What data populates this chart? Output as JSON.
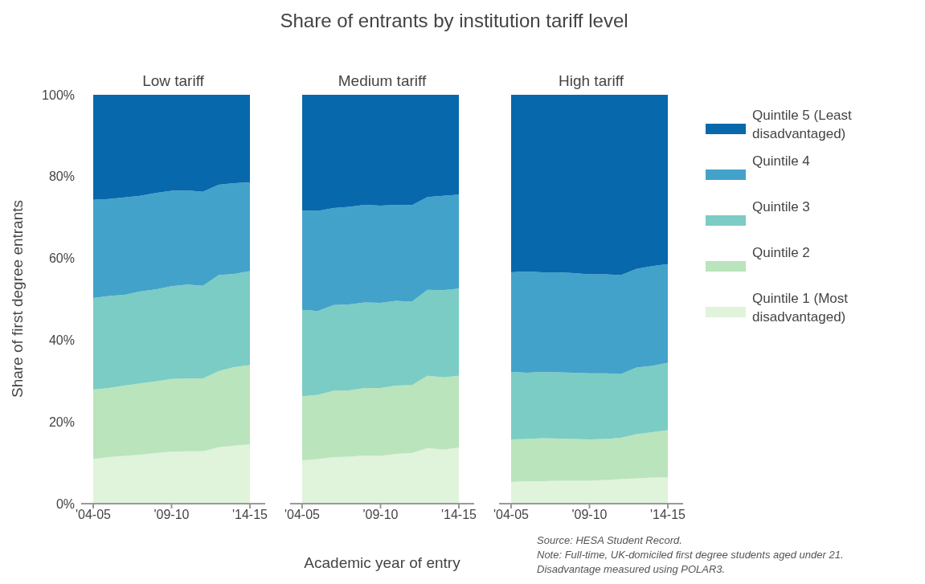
{
  "chart_data": [
    {
      "type": "area",
      "stacked": true,
      "subtitle": "Low tariff",
      "ylabel": "Share of first degree entrants",
      "categories": [
        "'04-05",
        null,
        null,
        null,
        null,
        "'09-10",
        null,
        null,
        null,
        null,
        "'14-15"
      ],
      "ylim": [
        0,
        100
      ],
      "yticks": [
        {
          "value": 0,
          "label": "0%"
        },
        {
          "value": 20,
          "label": "20%"
        },
        {
          "value": 40,
          "label": "40%"
        },
        {
          "value": 60,
          "label": "60%"
        },
        {
          "value": 80,
          "label": "80%"
        },
        {
          "value": 100,
          "label": "100%"
        }
      ],
      "series": [
        {
          "color": "#e0f3db",
          "values": [
            10.9,
            11.4,
            11.7,
            12.0,
            12.4,
            12.7,
            12.8,
            12.8,
            13.8,
            14.2,
            14.5
          ]
        },
        {
          "color": "#bae4bc",
          "values": [
            17.0,
            16.9,
            17.2,
            17.4,
            17.5,
            17.8,
            17.8,
            17.8,
            18.6,
            19.2,
            19.4
          ]
        },
        {
          "color": "#7bccc4",
          "values": [
            22.4,
            22.5,
            22.2,
            22.5,
            22.5,
            22.7,
            23.0,
            22.7,
            23.5,
            22.8,
            23.0
          ]
        },
        {
          "color": "#43a2ca",
          "values": [
            24.0,
            23.7,
            23.8,
            23.4,
            23.6,
            23.3,
            23.0,
            23.0,
            22.1,
            22.2,
            21.7
          ]
        },
        {
          "color": "#0868ac",
          "values": [
            25.7,
            25.5,
            25.1,
            24.7,
            24.0,
            23.5,
            23.4,
            23.7,
            22.0,
            21.6,
            21.4
          ]
        }
      ]
    },
    {
      "type": "area",
      "stacked": true,
      "title": "Share of entrants by institution tariff level",
      "subtitle": "Medium tariff",
      "xlabel": "Academic year of entry",
      "tick_labels": "x",
      "categories": [
        "'04-05",
        null,
        null,
        null,
        null,
        "'09-10",
        null,
        null,
        null,
        null,
        "'14-15"
      ],
      "ylim": [
        0,
        100
      ],
      "series": [
        {
          "color": "#e0f3db",
          "values": [
            10.6,
            10.9,
            11.4,
            11.5,
            11.8,
            11.7,
            12.2,
            12.4,
            13.6,
            13.2,
            13.7
          ]
        },
        {
          "color": "#bae4bc",
          "values": [
            15.7,
            15.7,
            16.2,
            16.2,
            16.5,
            16.6,
            16.7,
            16.6,
            17.7,
            17.7,
            17.6
          ]
        },
        {
          "color": "#7bccc4",
          "values": [
            21.1,
            20.5,
            21.0,
            21.0,
            20.9,
            20.8,
            20.7,
            20.4,
            21.0,
            21.3,
            21.3
          ]
        },
        {
          "color": "#43a2ca",
          "values": [
            24.3,
            24.5,
            23.7,
            23.9,
            23.9,
            23.8,
            23.5,
            23.6,
            22.7,
            23.1,
            23.0
          ]
        },
        {
          "color": "#0868ac",
          "values": [
            28.3,
            28.4,
            27.7,
            27.4,
            26.9,
            27.1,
            26.9,
            27.0,
            25.0,
            24.7,
            24.4
          ]
        }
      ]
    },
    {
      "type": "area",
      "stacked": true,
      "subtitle": "High tariff",
      "tick_labels": "x",
      "legend": "right",
      "annotations": [
        "Source: HESA Student Record.",
        "Note: Full-time, UK-domiciled first degree students aged under 21. Disadvantage measured using POLAR3."
      ],
      "categories": [
        "'04-05",
        null,
        null,
        null,
        null,
        "'09-10",
        null,
        null,
        null,
        null,
        "'14-15"
      ],
      "ylim": [
        0,
        100
      ],
      "series": [
        {
          "name": "Quintile 1 (Most disadvantaged)",
          "color": "#e0f3db",
          "values": [
            5.3,
            5.5,
            5.5,
            5.6,
            5.6,
            5.6,
            5.8,
            6.0,
            6.2,
            6.4,
            6.5
          ]
        },
        {
          "name": "Quintile 2",
          "color": "#bae4bc",
          "values": [
            10.4,
            10.3,
            10.5,
            10.3,
            10.2,
            10.1,
            10.0,
            10.1,
            10.8,
            11.1,
            11.5
          ]
        },
        {
          "name": "Quintile 3",
          "color": "#7bccc4",
          "values": [
            16.5,
            16.2,
            16.2,
            16.2,
            16.2,
            16.2,
            16.1,
            15.6,
            16.3,
            16.2,
            16.5
          ]
        },
        {
          "name": "Quintile 4",
          "color": "#43a2ca",
          "values": [
            24.4,
            24.8,
            24.4,
            24.5,
            24.4,
            24.2,
            24.2,
            24.2,
            24.1,
            24.4,
            24.1
          ]
        },
        {
          "name": "Quintile 5 (Least disadvantaged)",
          "color": "#0868ac",
          "values": [
            43.4,
            43.2,
            43.4,
            43.4,
            43.6,
            43.9,
            43.9,
            44.1,
            42.6,
            41.9,
            41.4
          ]
        }
      ]
    }
  ]
}
